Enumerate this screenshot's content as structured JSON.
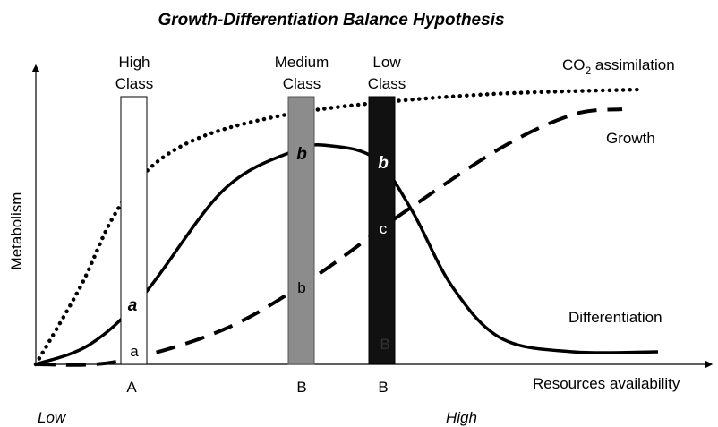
{
  "title": "Growth-Differentiation Balance Hypothesis",
  "y_axis_label": "Metabolism",
  "x_axis_label": "Resources availability",
  "x_axis_ends": [
    "Low",
    "High"
  ],
  "classes": [
    {
      "label": [
        "High",
        "Class"
      ],
      "bar_letters": [
        "a",
        "a"
      ],
      "category": "A"
    },
    {
      "label": [
        "Medium",
        "Class"
      ],
      "bar_letters": [
        "b",
        "b"
      ],
      "category": "B"
    },
    {
      "label": [
        "Low",
        "Class"
      ],
      "bar_letters": [
        "b",
        "c",
        "B"
      ],
      "category": "B"
    }
  ],
  "curve_labels": {
    "co2": [
      "CO",
      "2",
      " assimilation"
    ],
    "growth": "Growth",
    "differentiation": "Differentiation"
  }
}
